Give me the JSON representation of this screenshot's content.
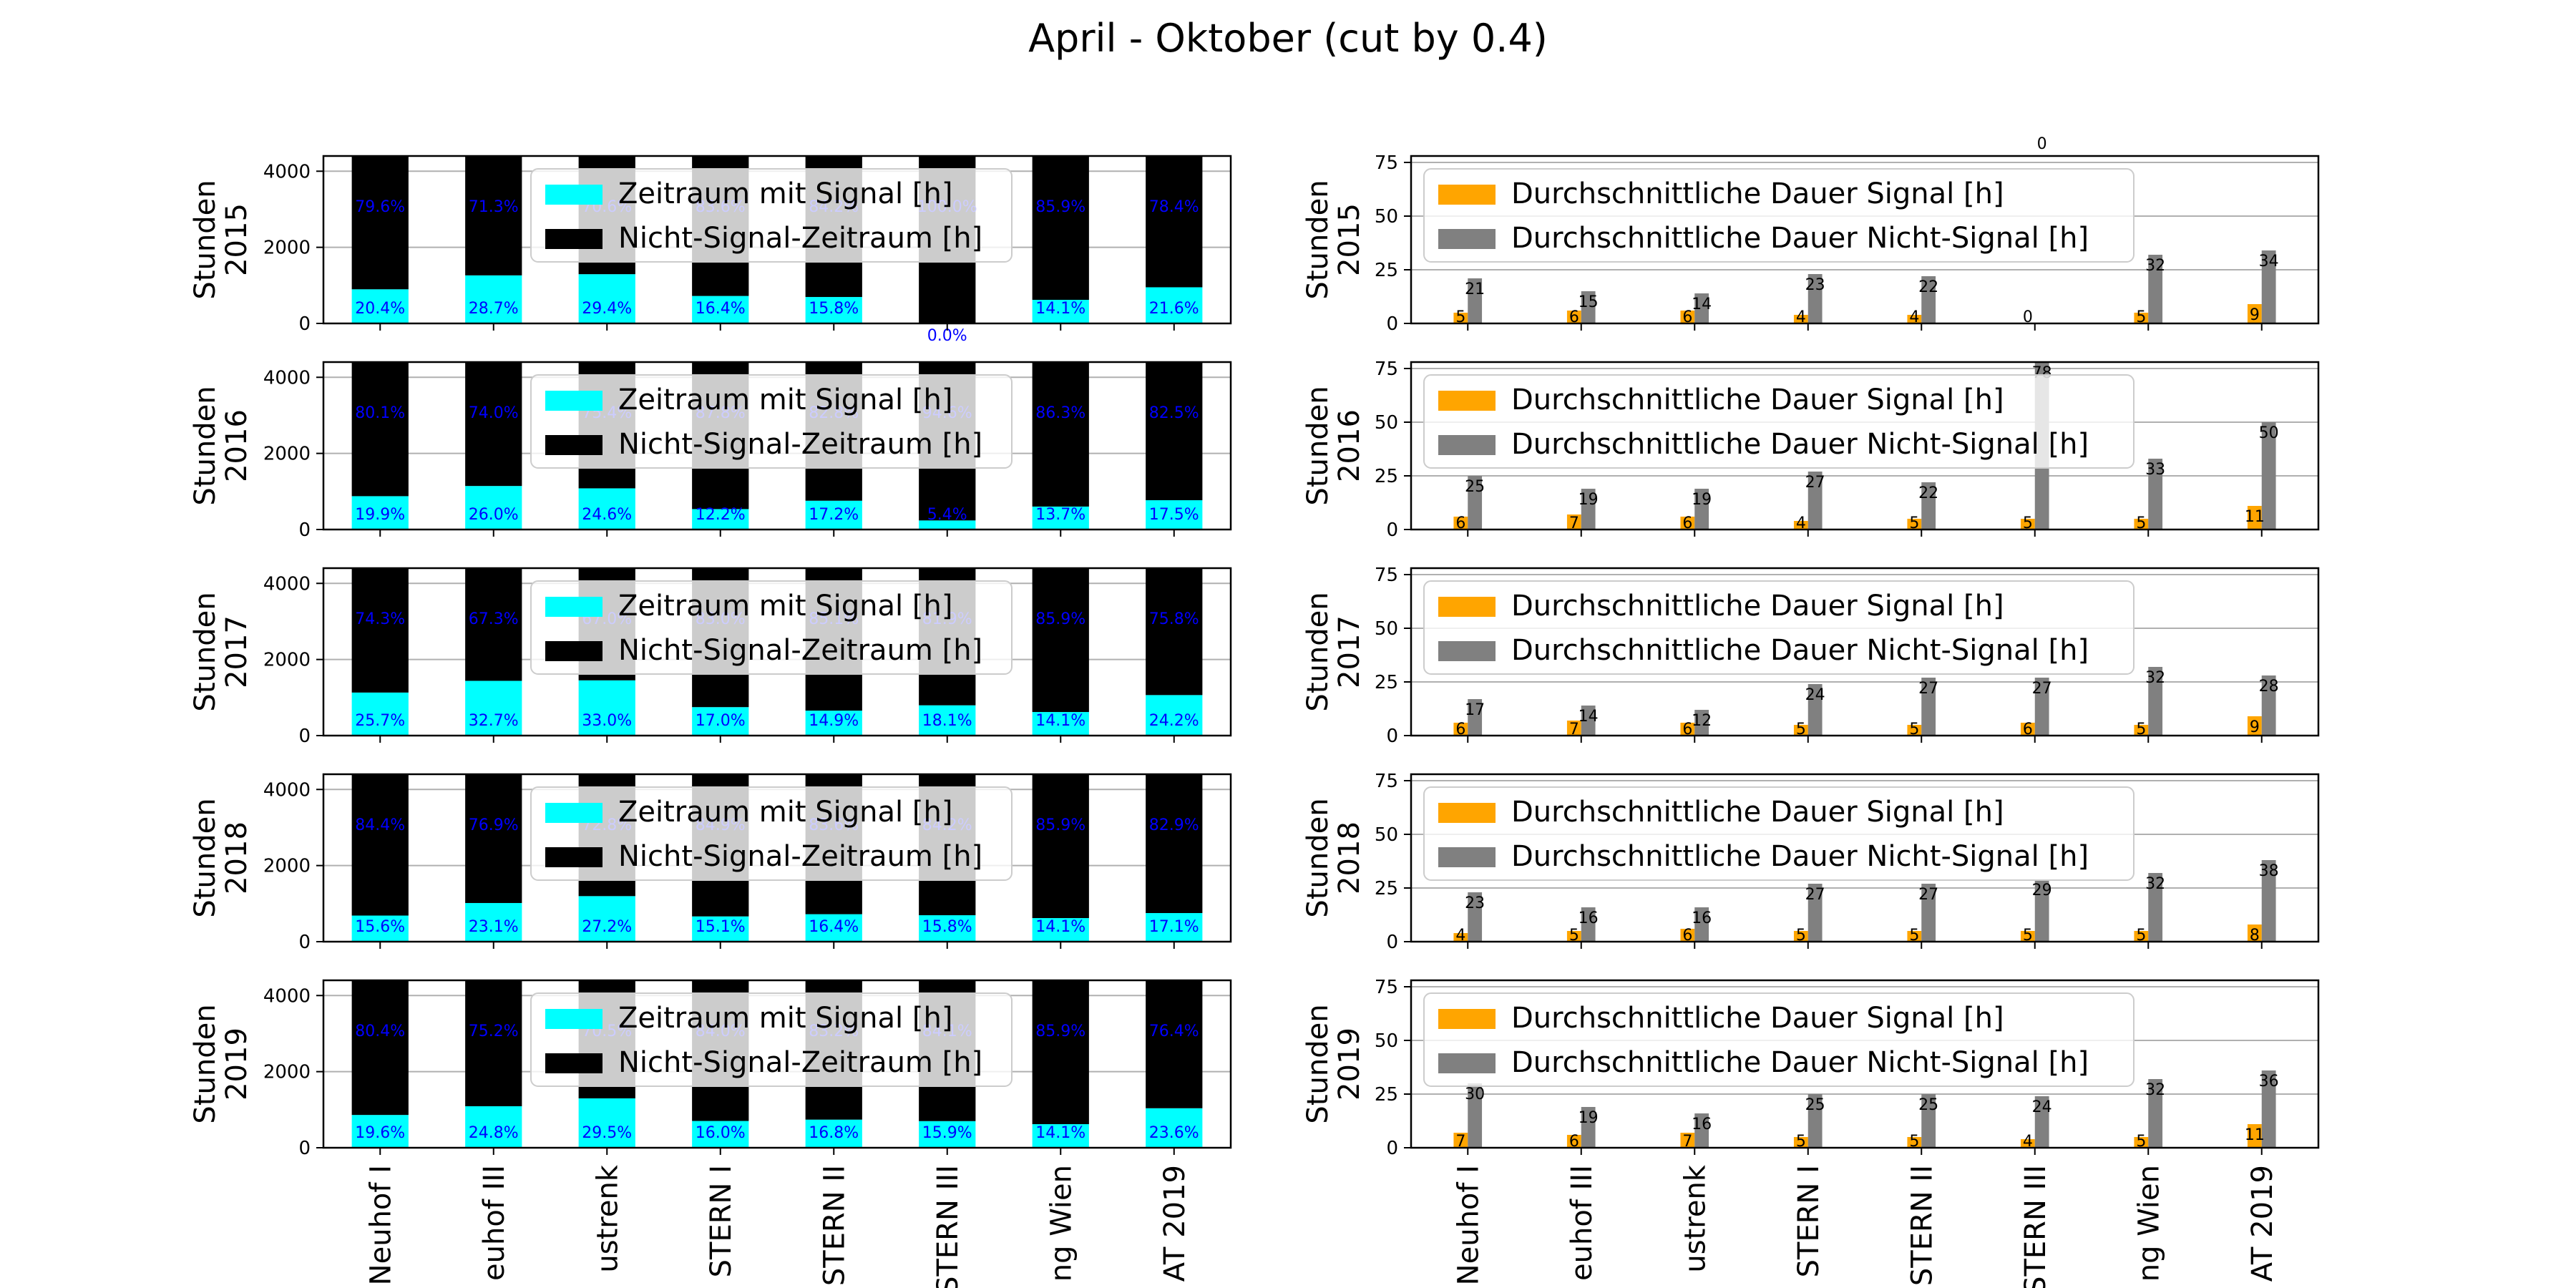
{
  "figure_title": "April - Oktober (cut by 0.4)",
  "colors": {
    "signal": "#00ffff",
    "no_signal": "#000000",
    "avg_signal": "#ffa500",
    "avg_no_signal": "#808080",
    "pct_label": "#0000ff",
    "grid": "#b0b0b0",
    "axes": "#000000",
    "legend_bg": "#ffffff"
  },
  "chart_data": [
    {
      "type": "bar",
      "year": "2015",
      "ylabel": "Stunden\n2015",
      "ylim": [
        0,
        4400
      ],
      "yticks": [
        "0",
        "2000",
        "4000"
      ],
      "categories": [
        "Neuhof I",
        "euhof III",
        "ustrenk",
        "STERN I",
        "STERN II",
        "STERN III",
        "ng Wien",
        "AT 2019"
      ],
      "series": [
        {
          "name": "Zeitraum mit Signal [h]",
          "values": [
            897,
            1263,
            1294,
            722,
            695,
            0,
            620,
            950
          ]
        },
        {
          "name": "Nicht-Signal-Zeitraum [h]",
          "values": [
            3503,
            3137,
            3106,
            3678,
            3705,
            4400,
            3780,
            3450
          ]
        }
      ],
      "labels_signal": [
        "20.4%",
        "28.7%",
        "29.4%",
        "16.4%",
        "15.8%",
        "0.0%",
        "14.1%",
        "21.6%"
      ],
      "labels_no_signal": [
        "79.6%",
        "71.3%",
        "70.6%",
        "83.6%",
        "84.2%",
        "100.0%",
        "85.9%",
        "78.4%"
      ],
      "legend": [
        "Zeitraum mit Signal [h]",
        "Nicht-Signal-Zeitraum [h]"
      ],
      "grid": true
    },
    {
      "type": "bar",
      "year": "2015",
      "ylabel": "Stunden\n2015",
      "ylim": [
        0,
        78
      ],
      "yticks": [
        "0",
        "25",
        "50",
        "75"
      ],
      "categories": [
        "Neuhof I",
        "euhof III",
        "ustrenk",
        "STERN I",
        "STERN II",
        "STERN III",
        "ng Wien",
        "AT 2019"
      ],
      "series": [
        {
          "name": "Durchschnittliche Dauer Signal [h]",
          "values": [
            5,
            6,
            6,
            4,
            4,
            0,
            5,
            9
          ]
        },
        {
          "name": "Durchschnittliche Dauer Nicht-Signal [h]",
          "values": [
            21,
            15,
            14,
            23,
            22,
            0,
            32,
            34
          ]
        }
      ],
      "labels_signal": [
        "5",
        "6",
        "6",
        "4",
        "4",
        "0",
        "5",
        "9"
      ],
      "labels_no_signal": [
        "21",
        "15",
        "14",
        "23",
        "22",
        "0",
        "32",
        "34"
      ],
      "legend": [
        "Durchschnittliche Dauer Signal [h]",
        "Durchschnittliche Dauer Nicht-Signal [h]"
      ],
      "grid": true
    },
    {
      "type": "bar",
      "year": "2016",
      "ylabel": "Stunden\n2016",
      "ylim": [
        0,
        4400
      ],
      "yticks": [
        "0",
        "2000",
        "4000"
      ],
      "categories": [
        "Neuhof I",
        "euhof III",
        "ustrenk",
        "STERN I",
        "STERN II",
        "STERN III",
        "ng Wien",
        "AT 2019"
      ],
      "series": [
        {
          "name": "Zeitraum mit Signal [h]",
          "values": [
            876,
            1144,
            1082,
            537,
            757,
            238,
            603,
            770
          ]
        },
        {
          "name": "Nicht-Signal-Zeitraum [h]",
          "values": [
            3524,
            3256,
            3318,
            3863,
            3643,
            4162,
            3797,
            3630
          ]
        }
      ],
      "labels_signal": [
        "19.9%",
        "26.0%",
        "24.6%",
        "12.2%",
        "17.2%",
        "5.4%",
        "13.7%",
        "17.5%"
      ],
      "labels_no_signal": [
        "80.1%",
        "74.0%",
        "75.4%",
        "87.8%",
        "82.8%",
        "94.6%",
        "86.3%",
        "82.5%"
      ],
      "legend": [
        "Zeitraum mit Signal [h]",
        "Nicht-Signal-Zeitraum [h]"
      ],
      "grid": true
    },
    {
      "type": "bar",
      "year": "2016",
      "ylabel": "Stunden\n2016",
      "ylim": [
        0,
        78
      ],
      "yticks": [
        "0",
        "25",
        "50",
        "75"
      ],
      "categories": [
        "Neuhof I",
        "euhof III",
        "ustrenk",
        "STERN I",
        "STERN II",
        "STERN III",
        "ng Wien",
        "AT 2019"
      ],
      "series": [
        {
          "name": "Durchschnittliche Dauer Signal [h]",
          "values": [
            6,
            7,
            6,
            4,
            5,
            5,
            5,
            11
          ]
        },
        {
          "name": "Durchschnittliche Dauer Nicht-Signal [h]",
          "values": [
            25,
            19,
            19,
            27,
            22,
            78,
            33,
            50
          ]
        }
      ],
      "labels_signal": [
        "6",
        "7",
        "6",
        "4",
        "5",
        "5",
        "5",
        "11"
      ],
      "labels_no_signal": [
        "25",
        "19",
        "19",
        "27",
        "22",
        "78",
        "33",
        "50"
      ],
      "legend": [
        "Durchschnittliche Dauer Signal [h]",
        "Durchschnittliche Dauer Nicht-Signal [h]"
      ],
      "grid": true
    },
    {
      "type": "bar",
      "year": "2017",
      "ylabel": "Stunden\n2017",
      "ylim": [
        0,
        4400
      ],
      "yticks": [
        "0",
        "2000",
        "4000"
      ],
      "categories": [
        "Neuhof I",
        "euhof III",
        "ustrenk",
        "STERN I",
        "STERN II",
        "STERN III",
        "ng Wien",
        "AT 2019"
      ],
      "series": [
        {
          "name": "Zeitraum mit Signal [h]",
          "values": [
            1131,
            1439,
            1452,
            748,
            656,
            796,
            620,
            1065
          ]
        },
        {
          "name": "Nicht-Signal-Zeitraum [h]",
          "values": [
            3269,
            2961,
            2948,
            3652,
            3744,
            3604,
            3780,
            3335
          ]
        }
      ],
      "labels_signal": [
        "25.7%",
        "32.7%",
        "33.0%",
        "17.0%",
        "14.9%",
        "18.1%",
        "14.1%",
        "24.2%"
      ],
      "labels_no_signal": [
        "74.3%",
        "67.3%",
        "67.0%",
        "83.0%",
        "85.1%",
        "81.9%",
        "85.9%",
        "75.8%"
      ],
      "legend": [
        "Zeitraum mit Signal [h]",
        "Nicht-Signal-Zeitraum [h]"
      ],
      "grid": true
    },
    {
      "type": "bar",
      "year": "2017",
      "ylabel": "Stunden\n2017",
      "ylim": [
        0,
        78
      ],
      "yticks": [
        "0",
        "25",
        "50",
        "75"
      ],
      "categories": [
        "Neuhof I",
        "euhof III",
        "ustrenk",
        "STERN I",
        "STERN II",
        "STERN III",
        "ng Wien",
        "AT 2019"
      ],
      "series": [
        {
          "name": "Durchschnittliche Dauer Signal [h]",
          "values": [
            6,
            7,
            6,
            5,
            5,
            6,
            5,
            9
          ]
        },
        {
          "name": "Durchschnittliche Dauer Nicht-Signal [h]",
          "values": [
            17,
            14,
            12,
            24,
            27,
            27,
            32,
            28
          ]
        }
      ],
      "labels_signal": [
        "6",
        "7",
        "6",
        "5",
        "5",
        "6",
        "5",
        "9"
      ],
      "labels_no_signal": [
        "17",
        "14",
        "12",
        "24",
        "27",
        "27",
        "32",
        "28"
      ],
      "legend": [
        "Durchschnittliche Dauer Signal [h]",
        "Durchschnittliche Dauer Nicht-Signal [h]"
      ],
      "grid": true
    },
    {
      "type": "bar",
      "year": "2018",
      "ylabel": "Stunden\n2018",
      "ylim": [
        0,
        4400
      ],
      "yticks": [
        "0",
        "2000",
        "4000"
      ],
      "categories": [
        "Neuhof I",
        "euhof III",
        "ustrenk",
        "STERN I",
        "STERN II",
        "STERN III",
        "ng Wien",
        "AT 2019"
      ],
      "series": [
        {
          "name": "Zeitraum mit Signal [h]",
          "values": [
            686,
            1016,
            1197,
            664,
            722,
            695,
            620,
            752
          ]
        },
        {
          "name": "Nicht-Signal-Zeitraum [h]",
          "values": [
            3714,
            3384,
            3203,
            3736,
            3678,
            3705,
            3780,
            3648
          ]
        }
      ],
      "labels_signal": [
        "15.6%",
        "23.1%",
        "27.2%",
        "15.1%",
        "16.4%",
        "15.8%",
        "14.1%",
        "17.1%"
      ],
      "labels_no_signal": [
        "84.4%",
        "76.9%",
        "72.8%",
        "84.9%",
        "83.6%",
        "84.2%",
        "85.9%",
        "82.9%"
      ],
      "legend": [
        "Zeitraum mit Signal [h]",
        "Nicht-Signal-Zeitraum [h]"
      ],
      "grid": true
    },
    {
      "type": "bar",
      "year": "2018",
      "ylabel": "Stunden\n2018",
      "ylim": [
        0,
        78
      ],
      "yticks": [
        "0",
        "25",
        "50",
        "75"
      ],
      "categories": [
        "Neuhof I",
        "euhof III",
        "ustrenk",
        "STERN I",
        "STERN II",
        "STERN III",
        "ng Wien",
        "AT 2019"
      ],
      "series": [
        {
          "name": "Durchschnittliche Dauer Signal [h]",
          "values": [
            4,
            5,
            6,
            5,
            5,
            5,
            5,
            8
          ]
        },
        {
          "name": "Durchschnittliche Dauer Nicht-Signal [h]",
          "values": [
            23,
            16,
            16,
            27,
            27,
            29,
            32,
            38
          ]
        }
      ],
      "labels_signal": [
        "4",
        "5",
        "6",
        "5",
        "5",
        "5",
        "5",
        "8"
      ],
      "labels_no_signal": [
        "23",
        "16",
        "16",
        "27",
        "27",
        "29",
        "32",
        "38"
      ],
      "legend": [
        "Durchschnittliche Dauer Signal [h]",
        "Durchschnittliche Dauer Nicht-Signal [h]"
      ],
      "grid": true
    },
    {
      "type": "bar",
      "year": "2019",
      "ylabel": "Stunden\n2019",
      "ylim": [
        0,
        4400
      ],
      "yticks": [
        "0",
        "2000",
        "4000"
      ],
      "categories": [
        "Neuhof I",
        "euhof III",
        "ustrenk",
        "STERN I",
        "STERN II",
        "STERN III",
        "ng Wien",
        "AT 2019"
      ],
      "series": [
        {
          "name": "Zeitraum mit Signal [h]",
          "values": [
            862,
            1091,
            1298,
            704,
            739,
            700,
            620,
            1038
          ]
        },
        {
          "name": "Nicht-Signal-Zeitraum [h]",
          "values": [
            3538,
            3309,
            3102,
            3696,
            3661,
            3700,
            3780,
            3362
          ]
        }
      ],
      "labels_signal": [
        "19.6%",
        "24.8%",
        "29.5%",
        "16.0%",
        "16.8%",
        "15.9%",
        "14.1%",
        "23.6%"
      ],
      "labels_no_signal": [
        "80.4%",
        "75.2%",
        "70.5%",
        "84.0%",
        "83.2%",
        "84.1%",
        "85.9%",
        "76.4%"
      ],
      "legend": [
        "Zeitraum mit Signal [h]",
        "Nicht-Signal-Zeitraum [h]"
      ],
      "grid": true
    },
    {
      "type": "bar",
      "year": "2019",
      "ylabel": "Stunden\n2019",
      "ylim": [
        0,
        78
      ],
      "yticks": [
        "0",
        "25",
        "50",
        "75"
      ],
      "categories": [
        "Neuhof I",
        "euhof III",
        "ustrenk",
        "STERN I",
        "STERN II",
        "STERN III",
        "ng Wien",
        "AT 2019"
      ],
      "series": [
        {
          "name": "Durchschnittliche Dauer Signal [h]",
          "values": [
            7,
            6,
            7,
            5,
            5,
            4,
            5,
            11
          ]
        },
        {
          "name": "Durchschnittliche Dauer Nicht-Signal [h]",
          "values": [
            30,
            19,
            16,
            25,
            25,
            24,
            32,
            36
          ]
        }
      ],
      "labels_signal": [
        "7",
        "6",
        "7",
        "5",
        "5",
        "4",
        "5",
        "11"
      ],
      "labels_no_signal": [
        "30",
        "19",
        "16",
        "25",
        "25",
        "24",
        "32",
        "36"
      ],
      "legend": [
        "Durchschnittliche Dauer Signal [h]",
        "Durchschnittliche Dauer Nicht-Signal [h]"
      ],
      "grid": true
    }
  ]
}
